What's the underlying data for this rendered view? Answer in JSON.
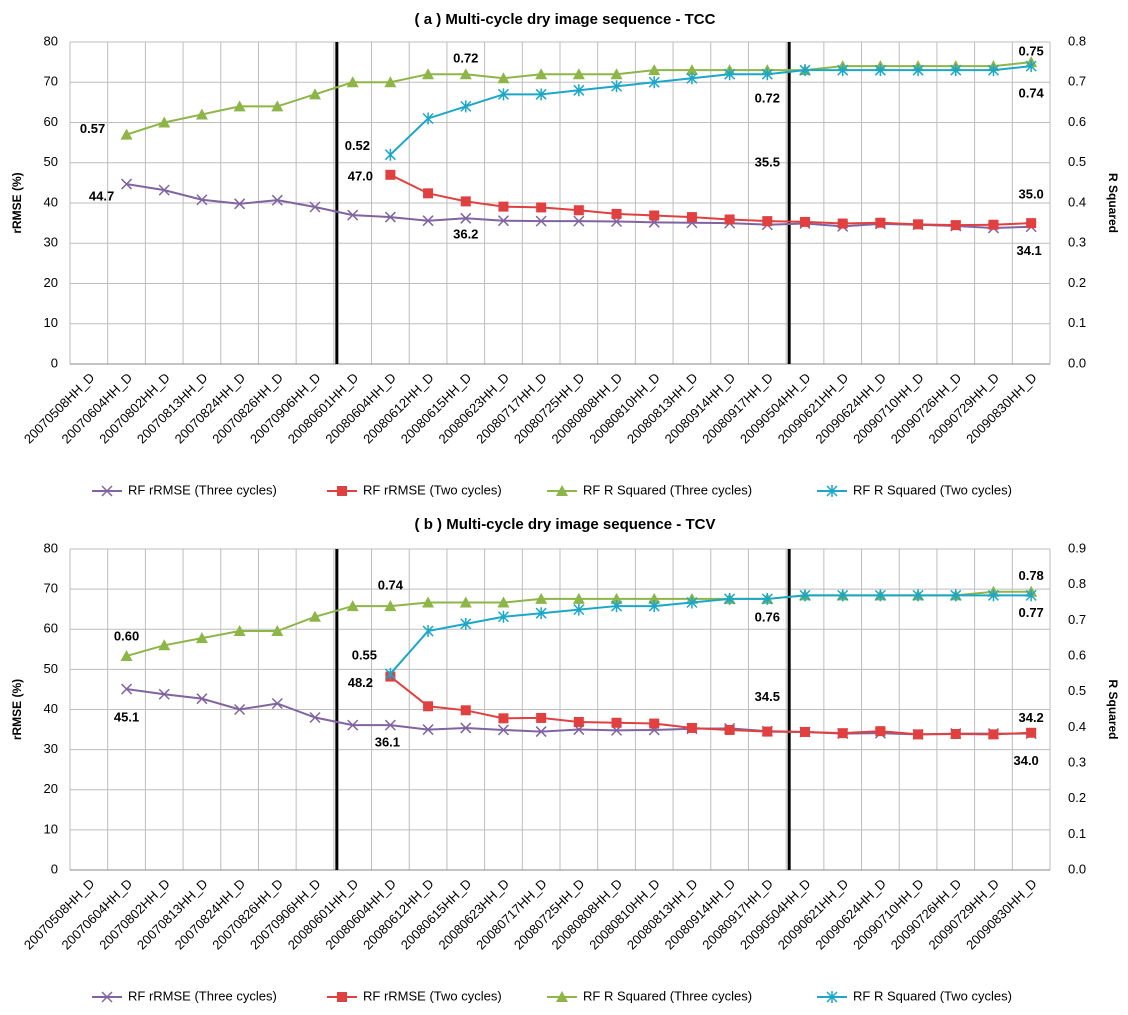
{
  "chart_data": [
    {
      "type": "line",
      "title": "( a ) Multi-cycle dry image sequence - TCC",
      "y_label": "rRMSE (%)",
      "y2_label": "R Squared",
      "categories": [
        "20070508HH_D",
        "20070604HH_D",
        "20070802HH_D",
        "20070813HH_D",
        "20070824HH_D",
        "20070826HH_D",
        "20070906HH_D",
        "20080601HH_D",
        "20080604HH_D",
        "20080612HH_D",
        "20080615HH_D",
        "20080623HH_D",
        "20080717HH_D",
        "20080725HH_D",
        "20080808HH_D",
        "20080810HH_D",
        "20080813HH_D",
        "20080914HH_D",
        "20080917HH_D",
        "20090504HH_D",
        "20090621HH_D",
        "20090624HH_D",
        "20090710HH_D",
        "20090726HH_D",
        "20090729HH_D",
        "20090830HH_D"
      ],
      "ylim": [
        0,
        80
      ],
      "yticks": [
        0,
        10,
        20,
        30,
        40,
        50,
        60,
        70,
        80
      ],
      "y2lim": [
        0,
        0.8
      ],
      "y2ticks": [
        {
          "value": 0,
          "label": "0.0"
        },
        0.1,
        0.2,
        0.3,
        0.4,
        0.5,
        0.6,
        0.7,
        0.8
      ],
      "grid": true,
      "legend": "bottom",
      "series": [
        {
          "name": "RF rRMSE (Three cycles)",
          "color": "#8064a2",
          "marker": "x",
          "values": [
            null,
            44.7,
            43.2,
            40.8,
            39.8,
            40.7,
            39.0,
            37.0,
            36.5,
            35.6,
            36.2,
            35.6,
            35.5,
            35.5,
            35.4,
            35.2,
            35.1,
            35.0,
            34.6,
            34.9,
            34.2,
            34.8,
            34.6,
            34.3,
            33.8,
            34.1
          ],
          "value_labels": [
            null,
            "44.7",
            null,
            null,
            null,
            null,
            null,
            null,
            null,
            null,
            "36.2",
            null,
            null,
            null,
            null,
            null,
            null,
            null,
            null,
            null,
            null,
            null,
            null,
            null,
            null,
            "34.1"
          ]
        },
        {
          "name": "RF rRMSE (Two cycles)",
          "color": "#e0403f",
          "marker": "square",
          "values": [
            null,
            null,
            null,
            null,
            null,
            null,
            null,
            null,
            47.0,
            42.4,
            40.4,
            39.1,
            38.9,
            38.2,
            37.3,
            36.9,
            36.5,
            35.9,
            35.5,
            35.3,
            34.9,
            35.1,
            34.7,
            34.5,
            34.6,
            35.0
          ],
          "value_labels": [
            null,
            null,
            null,
            null,
            null,
            null,
            null,
            null,
            "47.0",
            null,
            null,
            null,
            null,
            null,
            null,
            null,
            null,
            null,
            "35.5",
            null,
            null,
            null,
            null,
            null,
            null,
            "35.0"
          ]
        },
        {
          "name": "RF R Squared (Three cycles)",
          "color": "#8db548",
          "marker": "triangle",
          "axis": "y2",
          "values": [
            null,
            0.57,
            0.6,
            0.62,
            0.64,
            0.64,
            0.67,
            0.7,
            0.7,
            0.72,
            0.72,
            0.71,
            0.72,
            0.72,
            0.72,
            0.73,
            0.73,
            0.73,
            0.73,
            0.73,
            0.74,
            0.74,
            0.74,
            0.74,
            0.74,
            0.75
          ],
          "value_labels": [
            null,
            "0.57",
            null,
            null,
            null,
            null,
            null,
            null,
            null,
            null,
            "0.72",
            null,
            null,
            null,
            null,
            null,
            null,
            null,
            null,
            null,
            null,
            null,
            null,
            null,
            null,
            "0.75"
          ]
        },
        {
          "name": "RF R Squared (Two cycles)",
          "color": "#1ba7c9",
          "marker": "star",
          "axis": "y2",
          "values": [
            null,
            null,
            null,
            null,
            null,
            null,
            null,
            null,
            0.52,
            0.61,
            0.64,
            0.67,
            0.67,
            0.68,
            0.69,
            0.7,
            0.71,
            0.72,
            0.72,
            0.73,
            0.73,
            0.73,
            0.73,
            0.73,
            0.73,
            0.74
          ],
          "value_labels": [
            null,
            null,
            null,
            null,
            null,
            null,
            null,
            null,
            "0.52",
            null,
            null,
            null,
            null,
            null,
            null,
            null,
            null,
            null,
            "0.72",
            null,
            null,
            null,
            null,
            null,
            null,
            "0.74"
          ]
        }
      ]
    },
    {
      "type": "line",
      "title": "( b ) Multi-cycle dry image sequence - TCV",
      "y_label": "rRMSE (%)",
      "y2_label": "R Squared",
      "categories": [
        "20070508HH_D",
        "20070604HH_D",
        "20070802HH_D",
        "20070813HH_D",
        "20070824HH_D",
        "20070826HH_D",
        "20070906HH_D",
        "20080601HH_D",
        "20080604HH_D",
        "20080612HH_D",
        "20080615HH_D",
        "20080623HH_D",
        "20080717HH_D",
        "20080725HH_D",
        "20080808HH_D",
        "20080810HH_D",
        "20080813HH_D",
        "20080914HH_D",
        "20080917HH_D",
        "20090504HH_D",
        "20090621HH_D",
        "20090624HH_D",
        "20090710HH_D",
        "20090726HH_D",
        "20090729HH_D",
        "20090830HH_D"
      ],
      "ylim": [
        0,
        80
      ],
      "yticks": [
        0,
        10,
        20,
        30,
        40,
        50,
        60,
        70,
        80
      ],
      "y2lim": [
        0,
        0.9
      ],
      "y2ticks": [
        {
          "value": 0,
          "label": "0.0"
        },
        0.1,
        0.2,
        0.3,
        0.4,
        0.5,
        0.6,
        0.7,
        0.8,
        0.9
      ],
      "grid": true,
      "legend": "bottom",
      "series": [
        {
          "name": "RF rRMSE (Three cycles)",
          "color": "#8064a2",
          "marker": "x",
          "values": [
            null,
            45.1,
            43.8,
            42.7,
            40.0,
            41.5,
            38.0,
            36.1,
            36.1,
            35.0,
            35.4,
            34.9,
            34.5,
            35.0,
            34.8,
            34.9,
            35.2,
            35.3,
            34.6,
            34.4,
            34.0,
            34.1,
            33.8,
            34.0,
            34.0,
            34.0
          ],
          "value_labels": [
            null,
            "45.1",
            null,
            null,
            null,
            null,
            null,
            null,
            "36.1",
            null,
            null,
            null,
            null,
            null,
            null,
            null,
            null,
            null,
            null,
            null,
            null,
            null,
            null,
            null,
            null,
            "34.0"
          ]
        },
        {
          "name": "RF rRMSE (Two cycles)",
          "color": "#e0403f",
          "marker": "square",
          "values": [
            null,
            null,
            null,
            null,
            null,
            null,
            null,
            null,
            48.2,
            40.8,
            39.8,
            37.8,
            37.9,
            36.9,
            36.7,
            36.5,
            35.4,
            34.9,
            34.5,
            34.4,
            34.1,
            34.6,
            33.8,
            33.9,
            33.8,
            34.2
          ],
          "value_labels": [
            null,
            null,
            null,
            null,
            null,
            null,
            null,
            null,
            "48.2",
            null,
            null,
            null,
            null,
            null,
            null,
            null,
            null,
            null,
            "34.5",
            null,
            null,
            null,
            null,
            null,
            null,
            "34.2"
          ]
        },
        {
          "name": "RF R Squared (Three cycles)",
          "color": "#8db548",
          "marker": "triangle",
          "axis": "y2",
          "values": [
            null,
            0.6,
            0.63,
            0.65,
            0.67,
            0.67,
            0.71,
            0.74,
            0.74,
            0.75,
            0.75,
            0.75,
            0.76,
            0.76,
            0.76,
            0.76,
            0.76,
            0.76,
            0.76,
            0.77,
            0.77,
            0.77,
            0.77,
            0.77,
            0.78,
            0.78
          ],
          "value_labels": [
            null,
            "0.60",
            null,
            null,
            null,
            null,
            null,
            null,
            "0.74",
            null,
            null,
            null,
            null,
            null,
            null,
            null,
            null,
            null,
            null,
            null,
            null,
            null,
            null,
            null,
            null,
            "0.78"
          ]
        },
        {
          "name": "RF R Squared (Two cycles)",
          "color": "#1ba7c9",
          "marker": "star",
          "axis": "y2",
          "values": [
            null,
            null,
            null,
            null,
            null,
            null,
            null,
            null,
            0.55,
            0.67,
            0.69,
            0.71,
            0.72,
            0.73,
            0.74,
            0.74,
            0.75,
            0.76,
            0.76,
            0.77,
            0.77,
            0.77,
            0.77,
            0.77,
            0.77,
            0.77
          ],
          "value_labels": [
            null,
            null,
            null,
            null,
            null,
            null,
            null,
            null,
            "0.55",
            null,
            null,
            null,
            null,
            null,
            null,
            null,
            null,
            null,
            "0.76",
            null,
            null,
            null,
            null,
            null,
            null,
            "0.77"
          ]
        }
      ]
    }
  ]
}
